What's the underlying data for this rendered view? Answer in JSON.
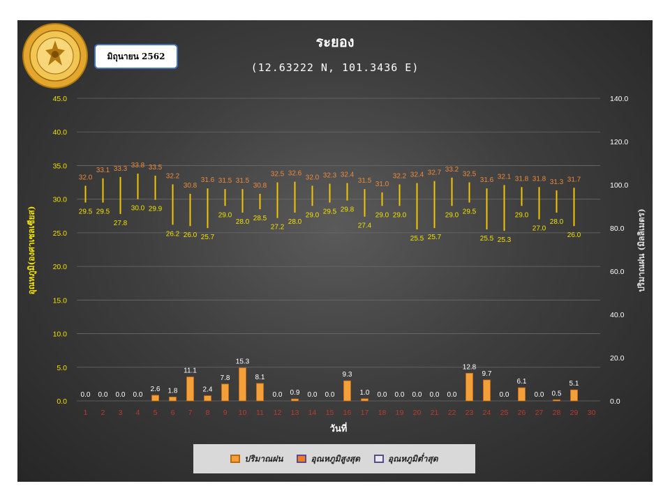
{
  "header": {
    "month": "มิถุนายน 2562",
    "logo_text": "กรมอุตุนิยมวิทยา METEOROLOGICAL DEPARTMENT"
  },
  "chart_data": {
    "type": "bar",
    "title": "ระยอง",
    "subtitle": "(12.63222 N, 101.3436 E)",
    "xlabel": "วันที่",
    "ylabel_left": "อุณหภูมิ(องศาเซลเซียส)",
    "ylabel_right": "ปริมาณฝน (มิลลิเมตร)",
    "x": [
      1,
      2,
      3,
      4,
      5,
      6,
      7,
      8,
      9,
      10,
      11,
      12,
      13,
      14,
      15,
      16,
      17,
      18,
      19,
      20,
      21,
      22,
      23,
      24,
      25,
      26,
      27,
      28,
      29,
      30
    ],
    "ylim_left": [
      0,
      45
    ],
    "ylim_right": [
      0,
      140
    ],
    "yticks_left": [
      "0.0",
      "5.0",
      "10.0",
      "15.0",
      "20.0",
      "25.0",
      "30.0",
      "35.0",
      "40.0",
      "45.0"
    ],
    "yticks_right": [
      "0.0",
      "20.0",
      "40.0",
      "60.0",
      "80.0",
      "100.0",
      "120.0",
      "140.0"
    ],
    "grid": true,
    "legend_position": "bottom",
    "colors": {
      "rain": "#f4a03a",
      "tmax_label": "#ee8a3a",
      "range_line": "#f2c500",
      "tmin_label": "#f2e200",
      "legend_border": "#5b4a8a"
    },
    "series": [
      {
        "name": "ปริมาณฝน",
        "axis": "right",
        "type": "bar",
        "values": [
          0.0,
          0.0,
          0.0,
          0.0,
          2.6,
          1.8,
          11.1,
          2.4,
          7.8,
          15.3,
          8.1,
          0.0,
          0.9,
          0.0,
          0.0,
          9.3,
          1.0,
          0.0,
          0.0,
          0.0,
          0.0,
          0.0,
          12.8,
          9.7,
          0.0,
          6.1,
          0.0,
          0.5,
          5.1,
          null
        ],
        "labels": [
          "0.0",
          "0.0",
          "0.0",
          "0.0",
          "2.6",
          "1.8",
          "11.1",
          "2.4",
          "7.8",
          "15.3",
          "8.1",
          "0.0",
          "0.9",
          "0.0",
          "0.0",
          "9.3",
          "1.0",
          "0.0",
          "0.0",
          "0.0",
          "0.0",
          "0.0",
          "12.8",
          "9.7",
          "0.0",
          "6.1",
          "0.0",
          "0.5",
          "5.1",
          ""
        ]
      },
      {
        "name": "อุณหภูมิสูงสุด",
        "axis": "left",
        "values": [
          32.0,
          33.1,
          33.3,
          33.8,
          33.5,
          32.2,
          30.8,
          31.6,
          31.5,
          31.5,
          30.8,
          32.5,
          32.6,
          32.0,
          32.3,
          32.4,
          31.5,
          31.0,
          32.2,
          32.4,
          32.7,
          33.2,
          32.5,
          31.6,
          32.1,
          31.8,
          31.8,
          31.3,
          31.7,
          null
        ],
        "labels": [
          "32.0",
          "33.1",
          "33.3",
          "33.8",
          "33.5",
          "32.2",
          "30.8",
          "31.6",
          "31.5",
          "31.5",
          "30.8",
          "32.5",
          "32.6",
          "32.0",
          "32.3",
          "32.4",
          "31.5",
          "31.0",
          "32.2",
          "32.4",
          "32.7",
          "33.2",
          "32.5",
          "31.6",
          "32.1",
          "31.8",
          "31.8",
          "31.3",
          "31.7",
          ""
        ]
      },
      {
        "name": "อุณหภูมิต่ำสุด",
        "axis": "left",
        "values": [
          29.5,
          29.5,
          27.8,
          30.0,
          29.9,
          26.2,
          26.0,
          25.7,
          29.0,
          28.0,
          28.5,
          27.2,
          28.0,
          29.0,
          29.5,
          29.8,
          27.4,
          29.0,
          29.0,
          25.5,
          25.7,
          29.0,
          29.5,
          25.5,
          25.3,
          29.0,
          27.0,
          28.0,
          26.0,
          null
        ],
        "labels": [
          "29.5",
          "29.5",
          "27.8",
          "30.0",
          "29.9",
          "26.2",
          "26.0",
          "25.7",
          "29.0",
          "28.0",
          "28.5",
          "27.2",
          "28.0",
          "29.0",
          "29.5",
          "29.8",
          "27.4",
          "29.0",
          "29.0",
          "25.5",
          "25.7",
          "29.0",
          "29.5",
          "25.5",
          "25.3",
          "29.0",
          "27.0",
          "28.0",
          "26.0",
          ""
        ]
      }
    ]
  }
}
